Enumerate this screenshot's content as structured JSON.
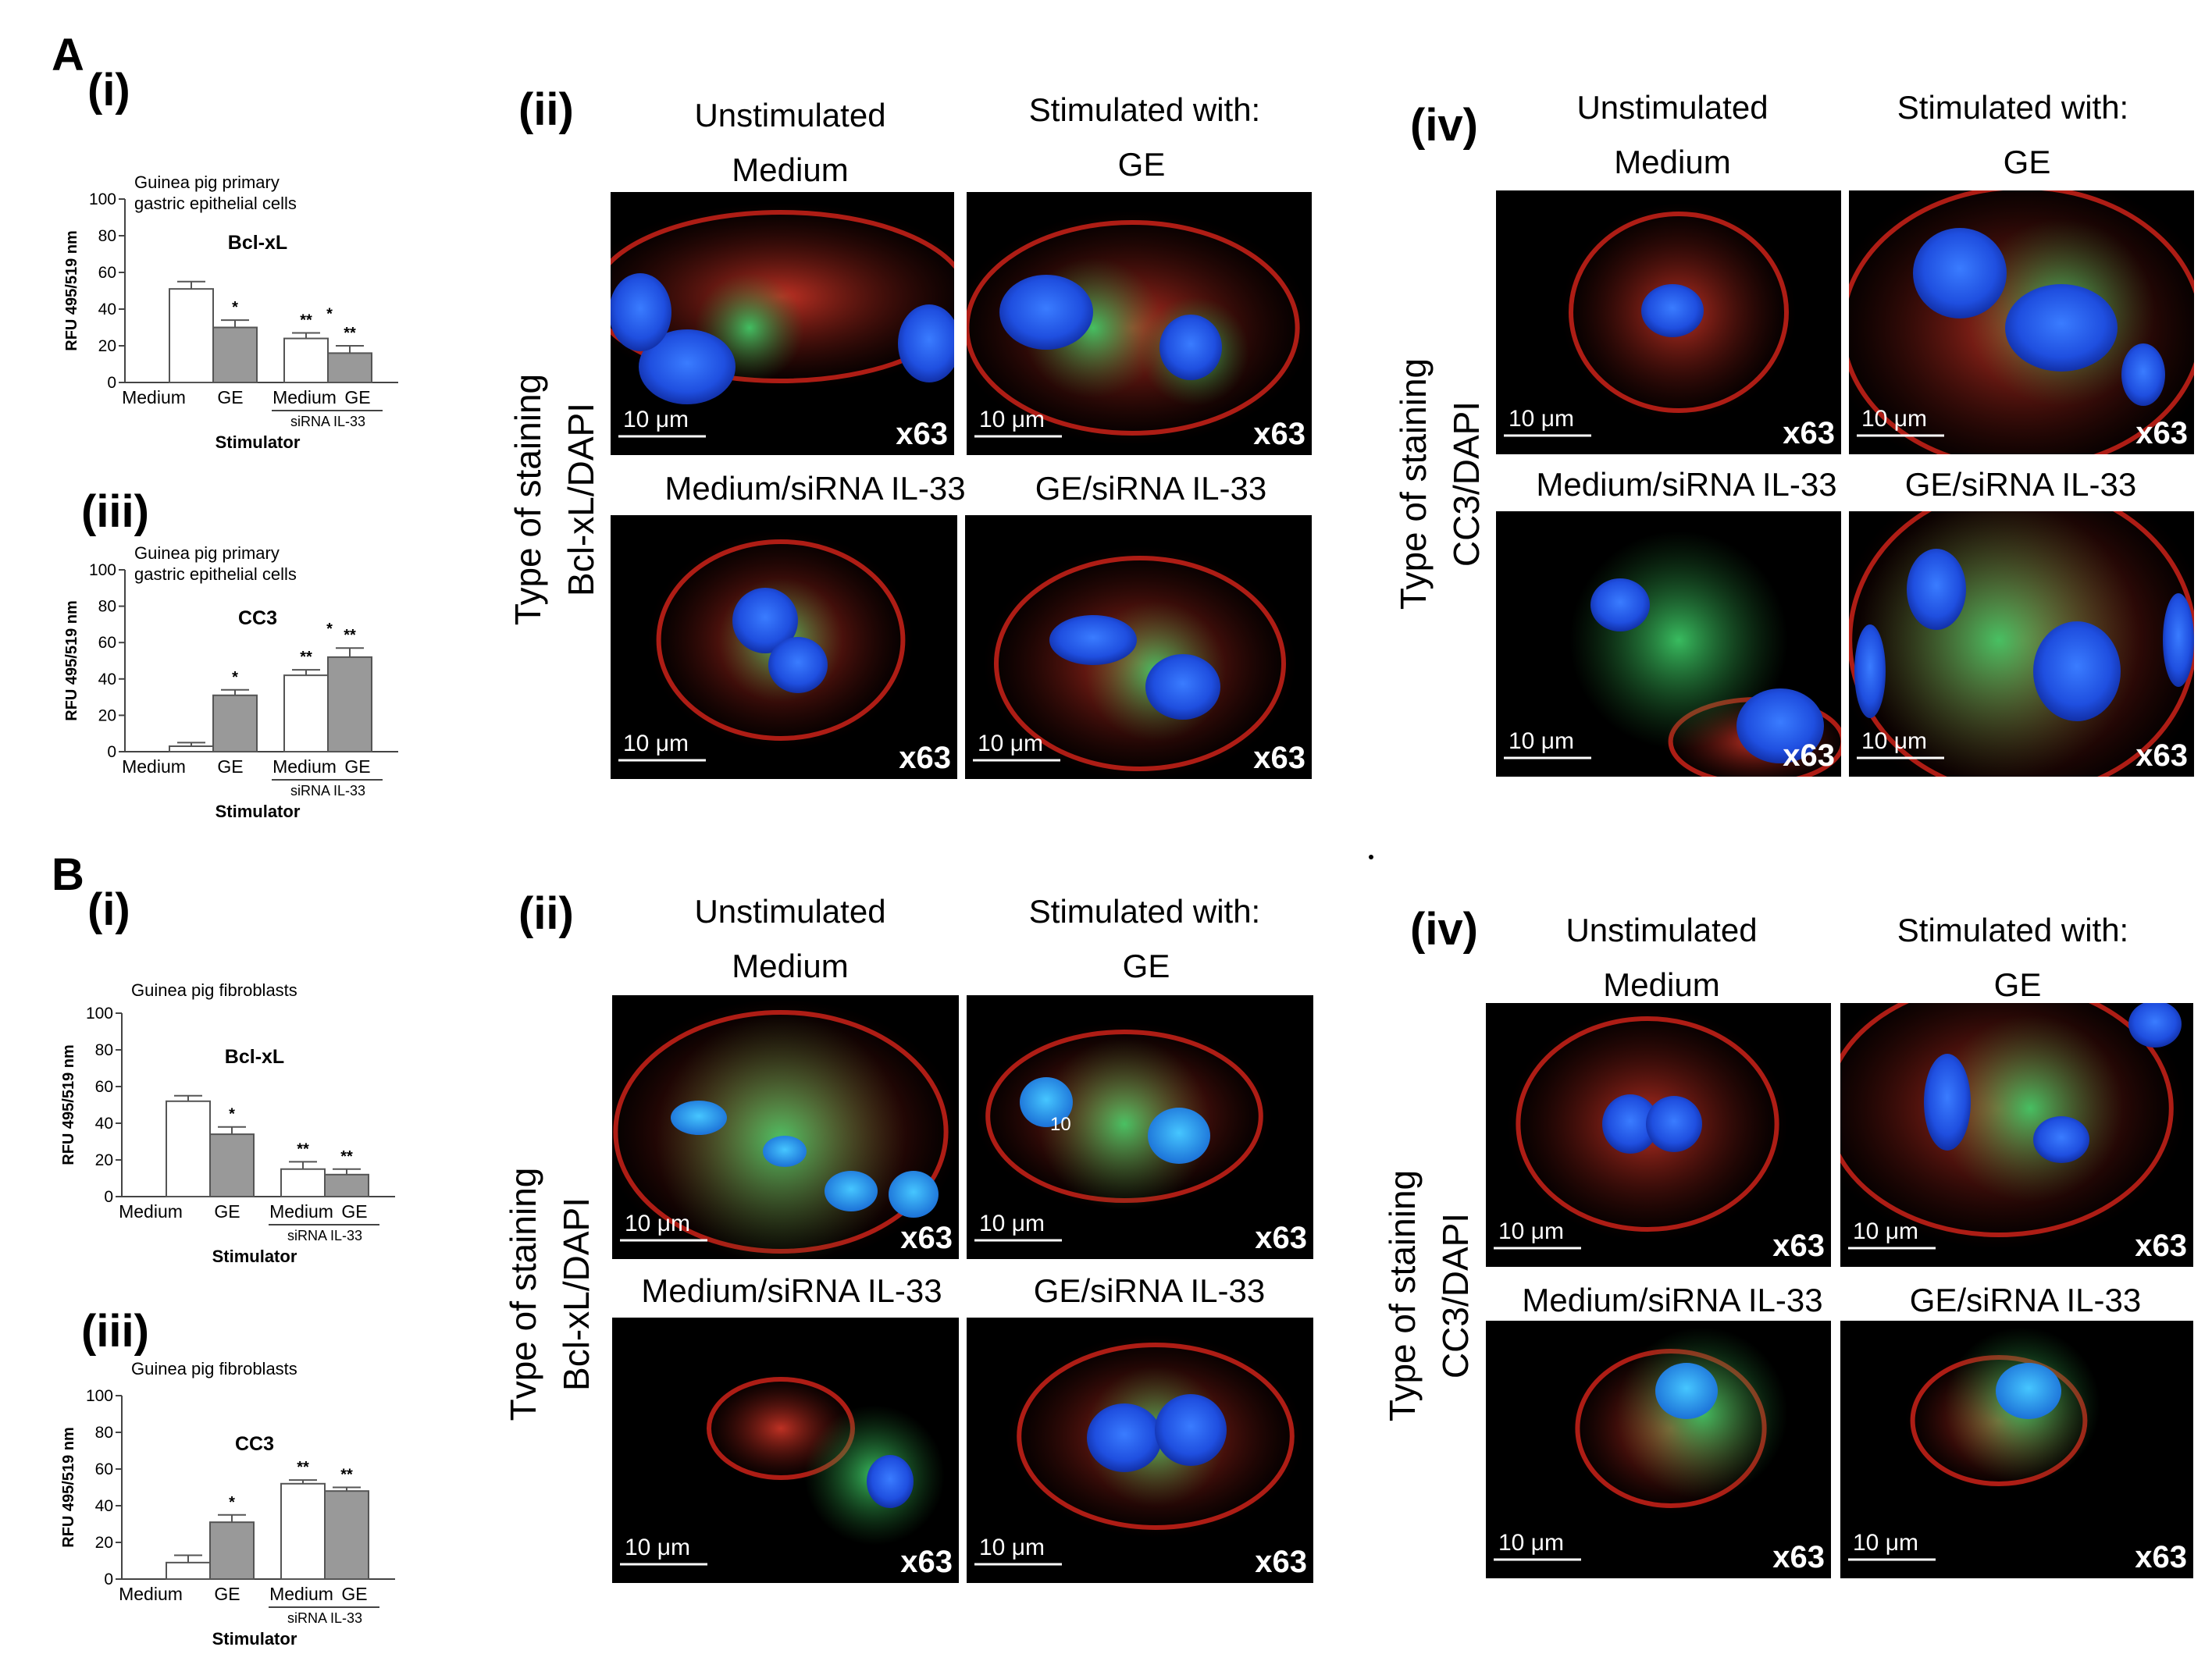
{
  "sections": {
    "A": {
      "letter": "A",
      "charts": [
        {
          "panel": "(i)",
          "title_lines": [
            "Guinea pig primary",
            "gastric epithelial cells"
          ],
          "marker": "Bcl-xL"
        },
        {
          "panel": "(iii)",
          "title_lines": [
            "Guinea pig primary",
            "gastric epithelial cells"
          ],
          "marker": "CC3"
        }
      ],
      "micro": [
        {
          "panel": "(ii)",
          "stain_label": [
            "Type of staining",
            "Bcl-xL/DAPI"
          ]
        },
        {
          "panel": "(iv)",
          "stain_label": [
            "Type of staining",
            "CC3/DAPI"
          ]
        }
      ]
    },
    "B": {
      "letter": "B",
      "charts": [
        {
          "panel": "(i)",
          "title_lines": [
            "Guinea pig fibroblasts"
          ],
          "marker": "Bcl-xL"
        },
        {
          "panel": "(iii)",
          "title_lines": [
            "Guinea pig fibroblasts"
          ],
          "marker": "CC3"
        }
      ],
      "micro": [
        {
          "panel": "(ii)",
          "stain_label": [
            "Tvpe of staining",
            "Bcl-xL/DAPI"
          ]
        },
        {
          "panel": "(iv)",
          "stain_label": [
            "Type of staining",
            "CC3/DAPI"
          ]
        }
      ]
    }
  },
  "micro_headings": {
    "unstimulated": "Unstimulated",
    "stimulated": "Stimulated with:",
    "medium": "Medium",
    "ge": "GE",
    "medium_sirna": "Medium/siRNA IL-33",
    "ge_sirna": "GE/siRNA IL-33"
  },
  "micro_image_text": {
    "scale_bar": "10 μm",
    "magnification": "x63",
    "stray_label": "10"
  },
  "chart_common": {
    "ylabel": "RFU 495/519 nm",
    "xlabel": "Stimulator",
    "categories": [
      "Medium",
      "GE",
      "Medium",
      "GE"
    ],
    "group_label": "siRNA IL-33",
    "yticks": [
      "0",
      "20",
      "40",
      "60",
      "80",
      "100"
    ]
  },
  "chart_data": [
    {
      "type": "bar",
      "title": "Guinea pig primary gastric epithelial cells",
      "panel": "A(i)",
      "marker": "Bcl-xL",
      "ylabel": "RFU 495/519 nm",
      "xlabel": "Stimulator",
      "categories": [
        "Medium",
        "GE",
        "Medium (siRNA IL-33)",
        "GE (siRNA IL-33)"
      ],
      "values": [
        51,
        30,
        24,
        16
      ],
      "errors": [
        4,
        4,
        3,
        4
      ],
      "significance": [
        "",
        "*",
        "**",
        "**"
      ],
      "bracket_sig": "*",
      "ylim": [
        0,
        100
      ],
      "fills": [
        "#ffffff",
        "#999999",
        "#ffffff",
        "#999999"
      ]
    },
    {
      "type": "bar",
      "title": "Guinea pig primary gastric epithelial cells",
      "panel": "A(iii)",
      "marker": "CC3",
      "ylabel": "RFU 495/519 nm",
      "xlabel": "Stimulator",
      "categories": [
        "Medium",
        "GE",
        "Medium (siRNA IL-33)",
        "GE (siRNA IL-33)"
      ],
      "values": [
        3,
        31,
        42,
        52
      ],
      "errors": [
        2,
        3,
        3,
        5
      ],
      "significance": [
        "",
        "*",
        "**",
        "**"
      ],
      "bracket_sig": "*",
      "ylim": [
        0,
        100
      ],
      "fills": [
        "#ffffff",
        "#999999",
        "#ffffff",
        "#999999"
      ]
    },
    {
      "type": "bar",
      "title": "Guinea pig fibroblasts",
      "panel": "B(i)",
      "marker": "Bcl-xL",
      "ylabel": "RFU 495/519 nm",
      "xlabel": "Stimulator",
      "categories": [
        "Medium",
        "GE",
        "Medium (siRNA IL-33)",
        "GE (siRNA IL-33)"
      ],
      "values": [
        52,
        34,
        15,
        12
      ],
      "errors": [
        3,
        4,
        4,
        3
      ],
      "significance": [
        "",
        "*",
        "**",
        "**"
      ],
      "bracket_sig": "",
      "ylim": [
        0,
        100
      ],
      "fills": [
        "#ffffff",
        "#999999",
        "#ffffff",
        "#999999"
      ]
    },
    {
      "type": "bar",
      "title": "Guinea pig fibroblasts",
      "panel": "B(iii)",
      "marker": "CC3",
      "ylabel": "RFU 495/519 nm",
      "xlabel": "Stimulator",
      "categories": [
        "Medium",
        "GE",
        "Medium (siRNA IL-33)",
        "GE (siRNA IL-33)"
      ],
      "values": [
        9,
        31,
        52,
        48
      ],
      "errors": [
        4,
        4,
        2,
        2
      ],
      "significance": [
        "",
        "*",
        "**",
        "**"
      ],
      "bracket_sig": "",
      "ylim": [
        0,
        100
      ],
      "fills": [
        "#ffffff",
        "#999999",
        "#ffffff",
        "#999999"
      ]
    }
  ]
}
